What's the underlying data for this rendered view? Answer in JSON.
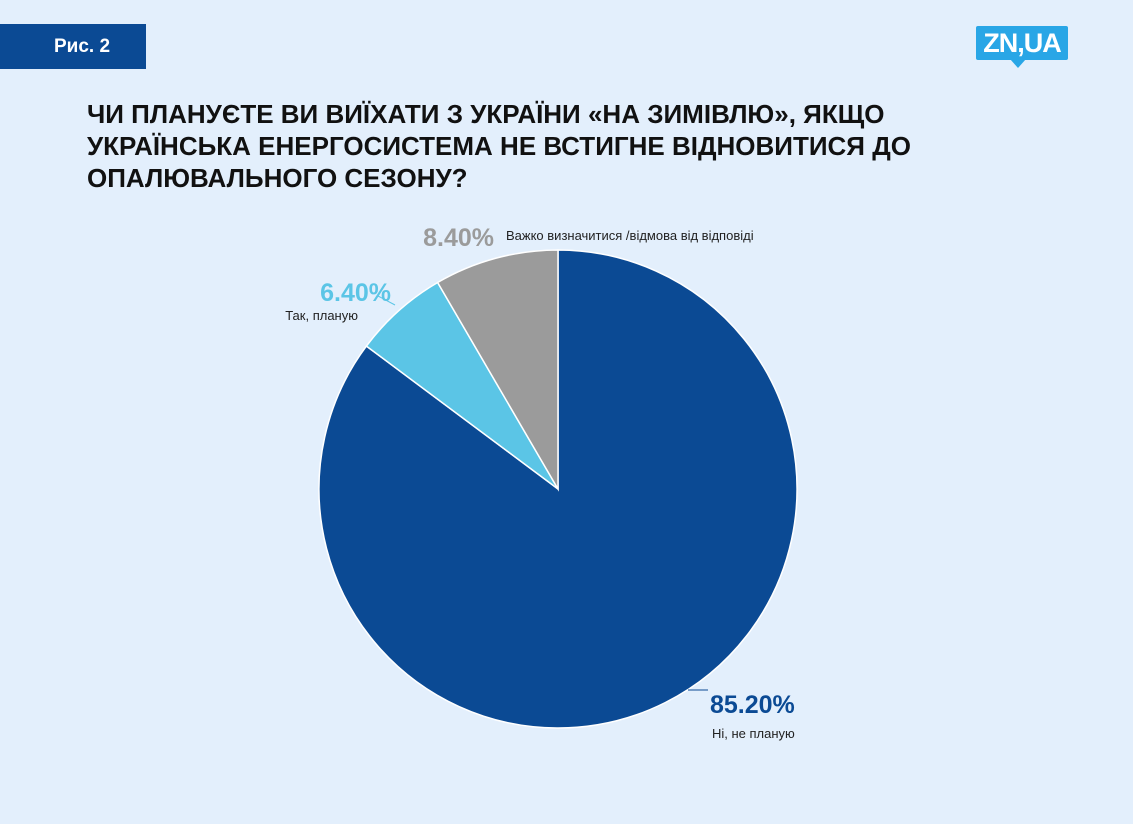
{
  "figure_label": "Рис. 2",
  "logo_text": "ZN,UA",
  "title": "ЧИ ПЛАНУЄТЕ ВИ ВИЇХАТИ З УКРАЇНИ «НА ЗИМІВЛЮ», ЯКЩО УКРАЇНСЬКА ЕНЕРГОСИСТЕМА НЕ ВСТИГНЕ ВІДНОВИТИСЯ ДО ОПАЛЮВАЛЬНОГО СЕЗОНУ?",
  "colors": {
    "background": "#e3effc",
    "badge": "#0b4a94",
    "logo": "#29a6e6"
  },
  "chart_data": {
    "type": "pie",
    "title": "ЧИ ПЛАНУЄТЕ ВИ ВИЇХАТИ З УКРАЇНИ «НА ЗИМІВЛЮ», ЯКЩО УКРАЇНСЬКА ЕНЕРГОСИСТЕМА НЕ ВСТИГНЕ ВІДНОВИТИСЯ ДО ОПАЛЮВАЛЬНОГО СЕЗОНУ?",
    "start": "12 o'clock, clockwise",
    "slices": [
      {
        "label": "Ні, не планую",
        "value": 85.2,
        "value_label": "85.20%",
        "color": "#0b4a94",
        "label_color": "#0b4a94"
      },
      {
        "label": "Так, планую",
        "value": 6.4,
        "value_label": "6.40%",
        "color": "#5bc5e6",
        "label_color": "#5bc5e6"
      },
      {
        "label": "Важко визначитися /відмова від відповіді",
        "value": 8.4,
        "value_label": "8.40%",
        "color": "#9b9b9b",
        "label_color": "#9b9b9b"
      }
    ]
  }
}
